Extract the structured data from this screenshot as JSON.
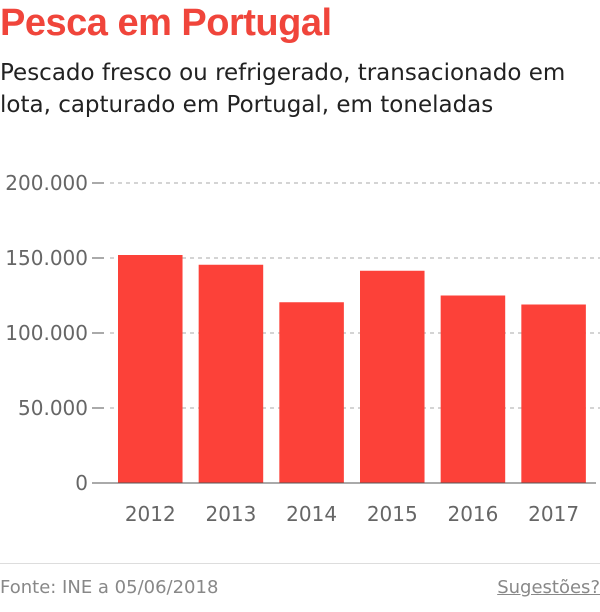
{
  "header": {
    "title": "Pesca em Portugal",
    "subtitle": "Pescado fresco ou refrigerado, transacionado em lota, capturado em Portugal, em toneladas"
  },
  "chart_data": {
    "type": "bar",
    "categories": [
      "2012",
      "2013",
      "2014",
      "2015",
      "2016",
      "2017"
    ],
    "values": [
      152000,
      145500,
      120500,
      141500,
      125000,
      119000
    ],
    "title": "Pesca em Portugal",
    "subtitle": "Pescado fresco ou refrigerado, transacionado em lota, capturado em Portugal, em toneladas",
    "xlabel": "",
    "ylabel": "",
    "ylim": [
      0,
      200000
    ],
    "yticks": [
      0,
      50000,
      100000,
      150000,
      200000
    ],
    "ytick_labels": [
      "0",
      "50.000",
      "100.000",
      "150.000",
      "200.000"
    ],
    "grid": true,
    "bar_color": "#fc4139"
  },
  "footer": {
    "source": "Fonte: INE a 05/06/2018",
    "suggestions": "Sugestões?"
  },
  "colors": {
    "accent": "#f0453b",
    "bar": "#fc4139"
  }
}
